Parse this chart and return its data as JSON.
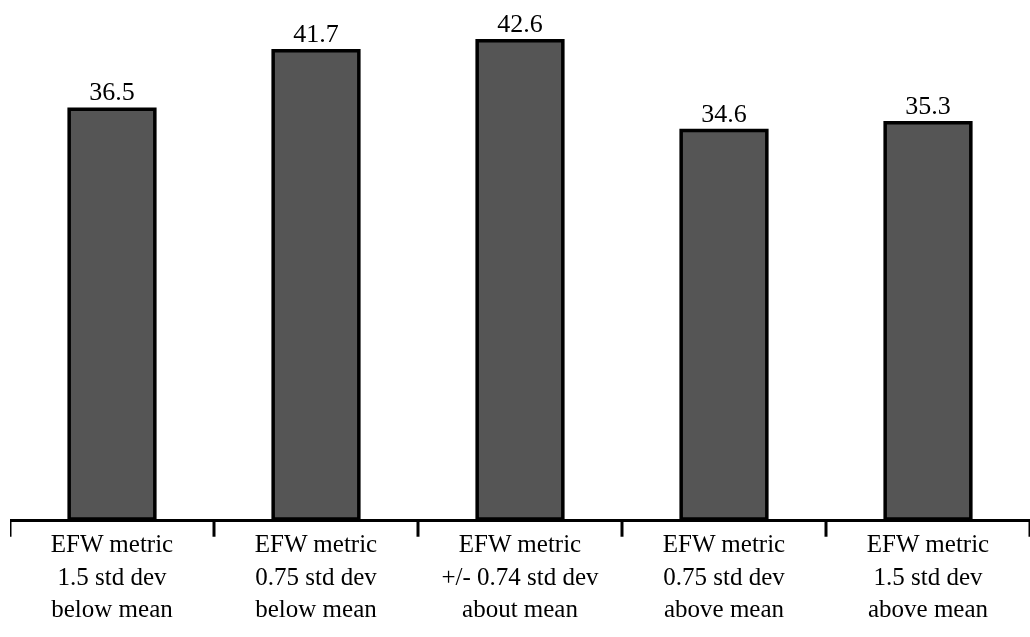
{
  "chart_data": {
    "type": "bar",
    "categories": [
      "EFW metric\n1.5 std dev\nbelow mean",
      "EFW metric\n0.75 std dev\nbelow mean",
      "EFW metric\n+/- 0.74 std dev\nabout mean",
      "EFW metric\n0.75 std dev\nabove mean",
      "EFW metric\n1.5 std dev\nabove mean"
    ],
    "values": [
      36.5,
      41.7,
      42.6,
      34.6,
      35.3
    ],
    "color": "#555555",
    "data_labels": true,
    "tick_labels": "x"
  }
}
